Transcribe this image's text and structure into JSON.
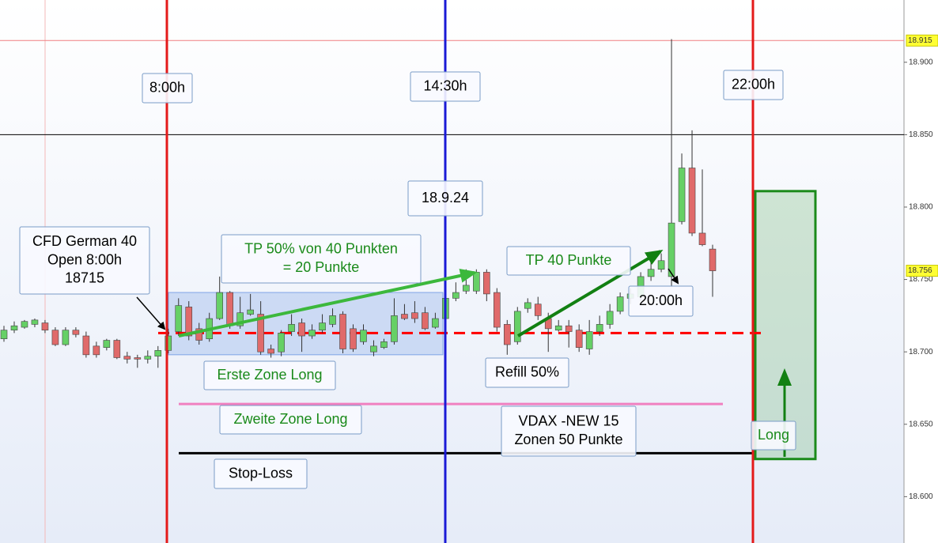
{
  "chart_data": {
    "type": "candlestick",
    "open": [
      18709,
      18715,
      18717,
      18719,
      18720,
      18715,
      18705,
      18715,
      18711,
      18704,
      18703,
      18708,
      18697,
      18696,
      18695,
      18697,
      18701,
      18714,
      18731,
      18716,
      18709,
      18723,
      18741,
      18718,
      18726,
      18726,
      18702,
      18700,
      18714,
      18720,
      18711,
      18715,
      18719,
      18726,
      18716,
      18707,
      18700,
      18703,
      18707,
      18726,
      18727,
      18727,
      18717,
      18723,
      18737,
      18742,
      18742,
      18755,
      18741,
      18719,
      18707,
      18730,
      18733,
      18723,
      18715,
      18718,
      18715,
      18702,
      18714,
      18719,
      18728,
      18737,
      18738,
      18752,
      18757,
      18752,
      18790,
      18827,
      18782,
      18771
    ],
    "high": [
      18718,
      18721,
      18722,
      18723,
      18722,
      18717,
      18717,
      18717,
      18714,
      18707,
      18709,
      18709,
      18700,
      18698,
      18701,
      18704,
      18716,
      18737,
      18735,
      18720,
      18727,
      18752,
      18742,
      18738,
      18740,
      18735,
      18705,
      18715,
      18726,
      18723,
      18719,
      18726,
      18730,
      18728,
      18719,
      18719,
      18708,
      18709,
      18737,
      18733,
      18735,
      18731,
      18727,
      18744,
      18748,
      18757,
      18757,
      18757,
      18744,
      18722,
      18731,
      18737,
      18738,
      18727,
      18722,
      18722,
      18719,
      18722,
      18725,
      18733,
      18741,
      18744,
      18755,
      18763,
      18768,
      18916,
      18837,
      18853,
      18826,
      18774
    ],
    "low": [
      18707,
      18713,
      18716,
      18717,
      18713,
      18704,
      18704,
      18710,
      18696,
      18696,
      18701,
      18695,
      18692,
      18689,
      18692,
      18689,
      18699,
      18711,
      18708,
      18705,
      18707,
      18722,
      18716,
      18716,
      18725,
      18698,
      18696,
      18697,
      18711,
      18700,
      18709,
      18713,
      18717,
      18699,
      18700,
      18705,
      18697,
      18702,
      18705,
      18722,
      18720,
      18715,
      18716,
      18722,
      18735,
      18740,
      18740,
      18735,
      18714,
      18698,
      18705,
      18727,
      18722,
      18700,
      18714,
      18703,
      18700,
      18698,
      18711,
      18716,
      18726,
      18733,
      18735,
      18749,
      18755,
      18745,
      18788,
      18780,
      18773,
      18738
    ],
    "close": [
      18715,
      18718,
      18721,
      18722,
      18715,
      18705,
      18715,
      18712,
      18698,
      18698,
      18708,
      18696,
      18695,
      18695,
      18697,
      18701,
      18711,
      18732,
      18711,
      18708,
      18723,
      18741,
      18718,
      18727,
      18729,
      18700,
      18699,
      18713,
      18719,
      18711,
      18715,
      18720,
      18725,
      18702,
      18702,
      18715,
      18704,
      18707,
      18725,
      18723,
      18723,
      18716,
      18723,
      18737,
      18741,
      18746,
      18755,
      18740,
      18717,
      18705,
      18728,
      18734,
      18725,
      18716,
      18718,
      18714,
      18703,
      18714,
      18719,
      18728,
      18738,
      18740,
      18752,
      18757,
      18763,
      18789,
      18827,
      18782,
      18774,
      18756
    ],
    "up_color": "#66d066",
    "down_color": "#e06a6a",
    "ylim": [
      18568,
      18943
    ],
    "yticks": [
      {
        "value": 18600,
        "label": "18.600"
      },
      {
        "value": 18650,
        "label": "18.650"
      },
      {
        "value": 18700,
        "label": "18.700"
      },
      {
        "value": 18750,
        "label": "18.750"
      },
      {
        "value": 18800,
        "label": "18.800"
      },
      {
        "value": 18850,
        "label": "18.850"
      },
      {
        "value": 18900,
        "label": "18.900"
      }
    ],
    "price_tags": [
      {
        "value": 18915,
        "label": "18.915"
      },
      {
        "value": 18756,
        "label": "18.756"
      }
    ],
    "levels": [
      {
        "value": 18915,
        "color": "#f08080"
      },
      {
        "value": 18850,
        "color": "#000000"
      },
      {
        "value": 18713,
        "color": "#ff0000"
      },
      {
        "value": 18664,
        "color": "#f080c0"
      },
      {
        "value": 18630,
        "color": "#000000"
      }
    ],
    "zones": [
      {
        "top": 18741,
        "bottom": 18698,
        "color": "#7fa4e6"
      },
      {
        "top": 18811,
        "bottom": 18626,
        "color": "#1a8a1a"
      }
    ],
    "annotations": [
      {
        "lines": [
          "8:00h"
        ],
        "color": "#000000"
      },
      {
        "lines": [
          "14:30h"
        ],
        "color": "#000000"
      },
      {
        "lines": [
          "22:00h"
        ],
        "color": "#000000"
      },
      {
        "lines": [
          "18.9.24"
        ],
        "color": "#000000"
      },
      {
        "lines": [
          "CFD German 40",
          "Open 8:00h",
          "18715"
        ],
        "color": "#000000"
      },
      {
        "lines": [
          "TP 50% von 40 Punkten",
          "= 20 Punkte"
        ],
        "color": "#1a8a1a"
      },
      {
        "lines": [
          "TP 40 Punkte"
        ],
        "color": "#1a8a1a"
      },
      {
        "lines": [
          "20:00h"
        ],
        "color": "#000000"
      },
      {
        "lines": [
          "Erste Zone Long"
        ],
        "color": "#1a8a1a"
      },
      {
        "lines": [
          "Refill 50%"
        ],
        "color": "#000000"
      },
      {
        "lines": [
          "Zweite Zone Long"
        ],
        "color": "#1a8a1a"
      },
      {
        "lines": [
          "VDAX -NEW 15",
          "Zonen 50 Punkte"
        ],
        "color": "#000000"
      },
      {
        "lines": [
          "Stop-Loss"
        ],
        "color": "#000000"
      },
      {
        "lines": [
          "Long"
        ],
        "color": "#1a8a1a"
      }
    ]
  }
}
